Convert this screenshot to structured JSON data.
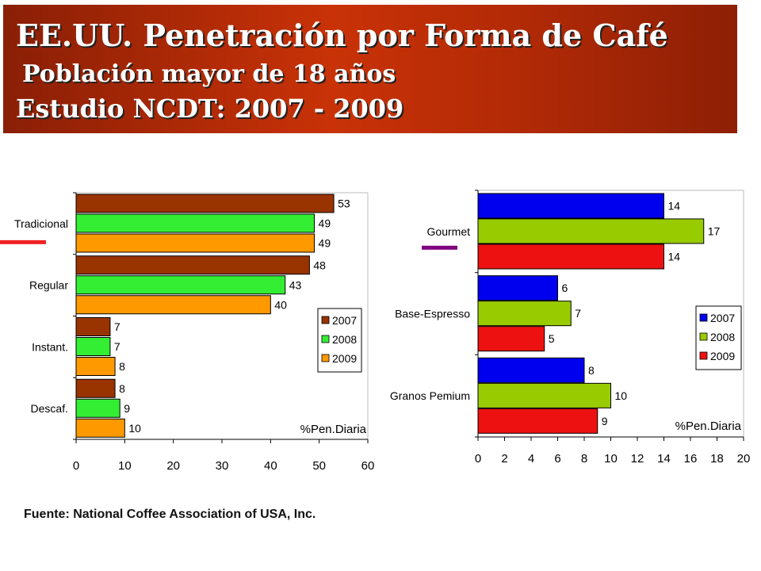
{
  "header": {
    "title": "EE.UU. Penetración por Forma de Café",
    "subtitle": "Población mayor de 18 años",
    "study": "Estudio NCDT: 2007 - 2009"
  },
  "source": "Fuente: National Coffee Association of USA, Inc.",
  "chart_data": [
    {
      "type": "bar",
      "orientation": "horizontal",
      "categories": [
        "Tradicional",
        "Regular",
        "Instant.",
        "Descaf."
      ],
      "series": [
        {
          "name": "2007",
          "color": "#993300",
          "values": [
            53,
            48,
            7,
            8
          ]
        },
        {
          "name": "2008",
          "color": "#33ee33",
          "values": [
            49,
            43,
            7,
            9
          ]
        },
        {
          "name": "2009",
          "color": "#ff9900",
          "values": [
            49,
            40,
            8,
            10
          ]
        }
      ],
      "xlim": [
        0,
        60
      ],
      "xticks": [
        0,
        10,
        20,
        30,
        40,
        50,
        60
      ],
      "xlabel": "%Pen.Diaria",
      "legend": "right",
      "highlight_marker": {
        "category": "Tradicional",
        "color": "#ee2222"
      }
    },
    {
      "type": "bar",
      "orientation": "horizontal",
      "categories": [
        "Gourmet",
        "Base-Espresso",
        "Granos Pemium"
      ],
      "series": [
        {
          "name": "2007",
          "color": "#0000ee",
          "values": [
            14,
            6,
            8
          ]
        },
        {
          "name": "2008",
          "color": "#99cc00",
          "values": [
            17,
            7,
            10
          ]
        },
        {
          "name": "2009",
          "color": "#ee1111",
          "values": [
            14,
            5,
            9
          ]
        }
      ],
      "xlim": [
        0,
        20
      ],
      "xticks": [
        0,
        2,
        4,
        6,
        8,
        10,
        12,
        14,
        16,
        18,
        20
      ],
      "xlabel": "%Pen.Diaria",
      "legend": "right",
      "highlight_marker": {
        "category": "Gourmet",
        "color": "#800080"
      }
    }
  ]
}
